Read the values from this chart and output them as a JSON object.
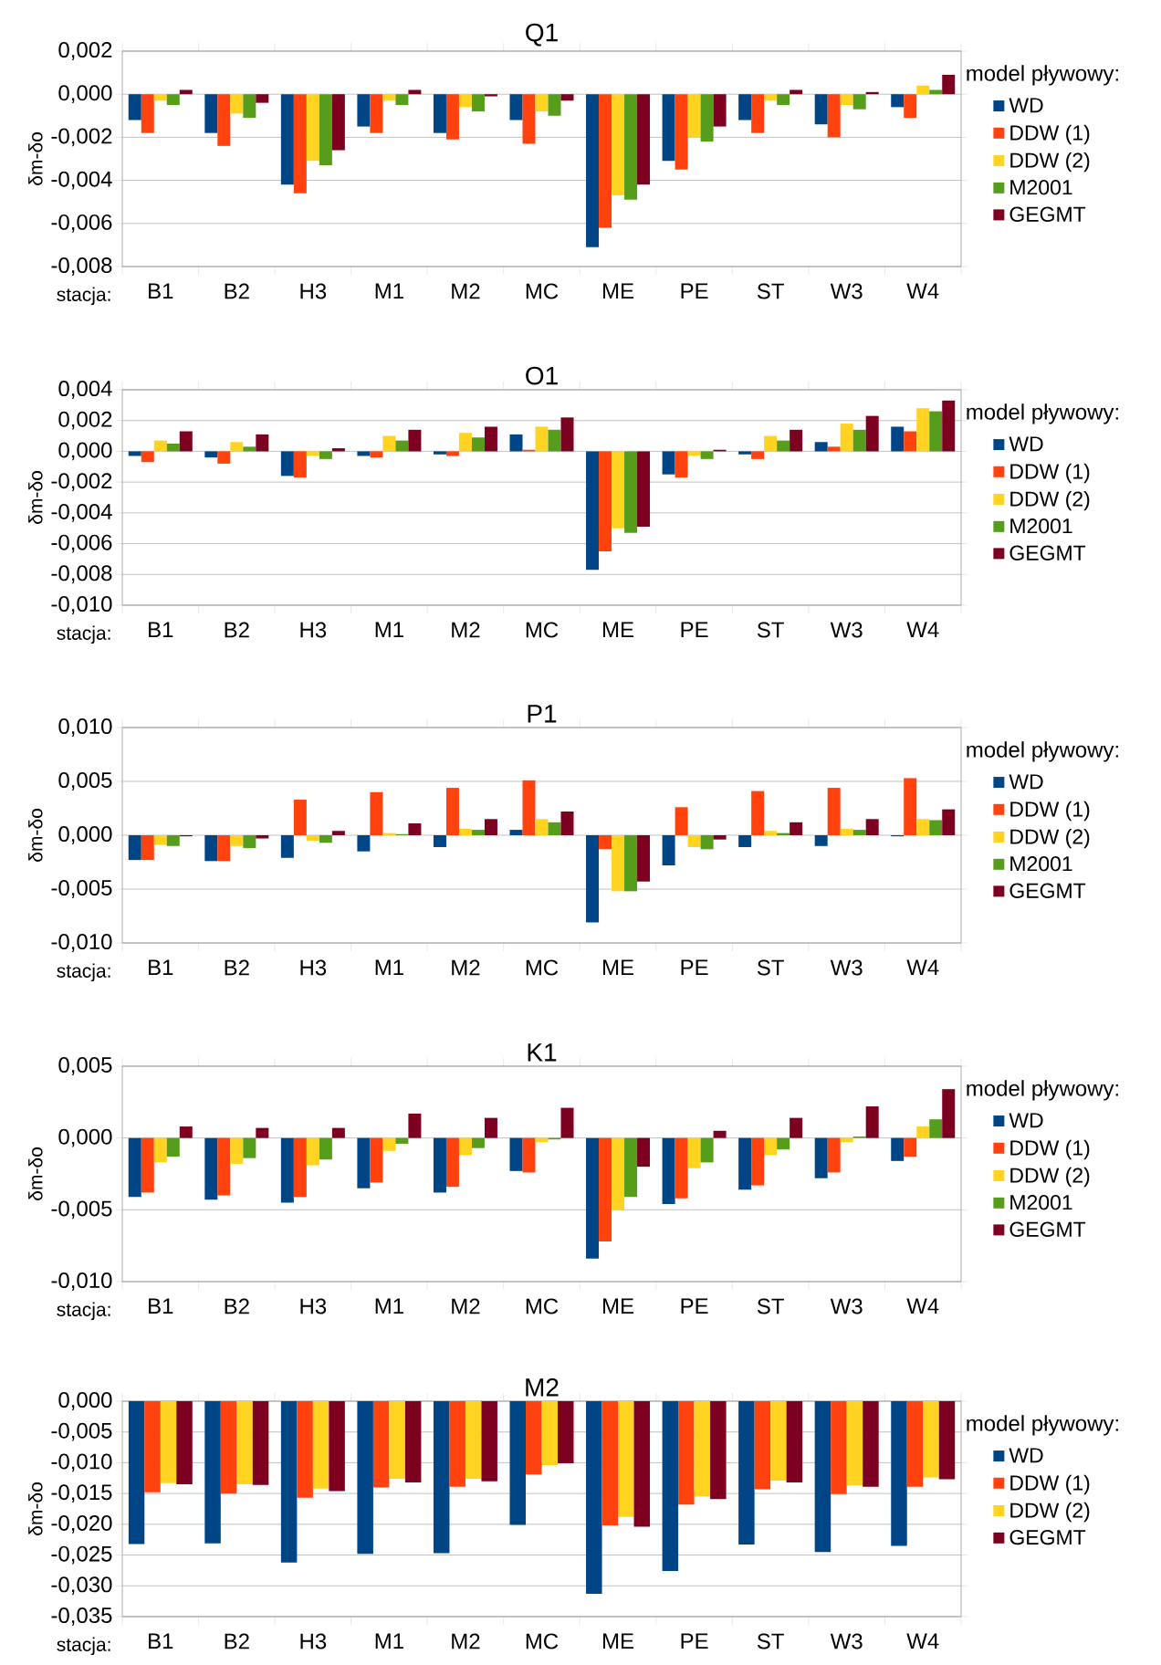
{
  "chart_data": [
    {
      "type": "bar",
      "title": "Q1",
      "xlabel": "stacja:",
      "ylabel": "δm-δo",
      "legend_title": "model pływowy:",
      "legend": "right",
      "grid": "y",
      "categories": [
        "B1",
        "B2",
        "H3",
        "M1",
        "M2",
        "MC",
        "ME",
        "PE",
        "ST",
        "W3",
        "W4"
      ],
      "ylim": [
        -0.008,
        0.002
      ],
      "yticks": [
        {
          "value": -0.008,
          "label": "-0,008"
        },
        {
          "value": -0.006,
          "label": "-0,006"
        },
        {
          "value": -0.004,
          "label": "-0,004"
        },
        {
          "value": -0.002,
          "label": "-0,002"
        },
        {
          "value": 0,
          "label": "0,000"
        },
        {
          "value": 0.002,
          "label": "0,002"
        }
      ],
      "series": [
        {
          "name": "WD",
          "color": "#004586",
          "values": [
            -0.0012,
            -0.0018,
            -0.0042,
            -0.0015,
            -0.0018,
            -0.0012,
            -0.0071,
            -0.0031,
            -0.0012,
            -0.0014,
            -0.0006
          ]
        },
        {
          "name": "DDW (1)",
          "color": "#ff420e",
          "values": [
            -0.0018,
            -0.0024,
            -0.0046,
            -0.0018,
            -0.0021,
            -0.0023,
            -0.0062,
            -0.0035,
            -0.0018,
            -0.002,
            -0.0011
          ]
        },
        {
          "name": "DDW (2)",
          "color": "#ffd320",
          "values": [
            -0.0003,
            -0.0009,
            -0.0031,
            -0.0003,
            -0.0006,
            -0.0008,
            -0.0047,
            -0.002,
            -0.0003,
            -0.0005,
            0.0004
          ]
        },
        {
          "name": "M2001",
          "color": "#579d1c",
          "values": [
            -0.0005,
            -0.0011,
            -0.0033,
            -0.0005,
            -0.0008,
            -0.001,
            -0.0049,
            -0.0022,
            -0.0005,
            -0.0007,
            0.0002
          ]
        },
        {
          "name": "GEGMT",
          "color": "#7e0021",
          "values": [
            0.0002,
            -0.0004,
            -0.0026,
            0.0002,
            -0.0001,
            -0.0003,
            -0.0042,
            -0.0015,
            0.0002,
            0.0001,
            0.0009
          ]
        }
      ]
    },
    {
      "type": "bar",
      "title": "O1",
      "xlabel": "stacja:",
      "ylabel": "δm-δo",
      "legend_title": "model pływowy:",
      "legend": "right",
      "grid": "y",
      "categories": [
        "B1",
        "B2",
        "H3",
        "M1",
        "M2",
        "MC",
        "ME",
        "PE",
        "ST",
        "W3",
        "W4"
      ],
      "ylim": [
        -0.01,
        0.004
      ],
      "yticks": [
        {
          "value": -0.01,
          "label": "-0,010"
        },
        {
          "value": -0.008,
          "label": "-0,008"
        },
        {
          "value": -0.006,
          "label": "-0,006"
        },
        {
          "value": -0.004,
          "label": "-0,004"
        },
        {
          "value": -0.002,
          "label": "-0,002"
        },
        {
          "value": 0,
          "label": "0,000"
        },
        {
          "value": 0.002,
          "label": "0,002"
        },
        {
          "value": 0.004,
          "label": "0,004"
        }
      ],
      "series": [
        {
          "name": "WD",
          "color": "#004586",
          "values": [
            -0.0003,
            -0.0004,
            -0.0016,
            -0.0003,
            -0.0002,
            0.0011,
            -0.0077,
            -0.0015,
            -0.0002,
            0.0006,
            0.0016
          ]
        },
        {
          "name": "DDW (1)",
          "color": "#ff420e",
          "values": [
            -0.0007,
            -0.0008,
            -0.0017,
            -0.0004,
            -0.0003,
            0.0001,
            -0.0065,
            -0.0017,
            -0.0005,
            0.0003,
            0.0013
          ]
        },
        {
          "name": "DDW (2)",
          "color": "#ffd320",
          "values": [
            0.0007,
            0.0006,
            -0.0003,
            0.001,
            0.0012,
            0.0016,
            -0.005,
            -0.0003,
            0.001,
            0.0018,
            0.0028
          ]
        },
        {
          "name": "M2001",
          "color": "#579d1c",
          "values": [
            0.0005,
            0.0003,
            -0.0005,
            0.0007,
            0.0009,
            0.0014,
            -0.0053,
            -0.0005,
            0.0007,
            0.0014,
            0.0026
          ]
        },
        {
          "name": "GEGMT",
          "color": "#7e0021",
          "values": [
            0.0013,
            0.0011,
            0.0002,
            0.0014,
            0.0016,
            0.0022,
            -0.0049,
            0.0001,
            0.0014,
            0.0023,
            0.0033
          ]
        }
      ]
    },
    {
      "type": "bar",
      "title": "P1",
      "xlabel": "stacja:",
      "ylabel": "δm-δo",
      "legend_title": "model pływowy:",
      "legend": "right",
      "grid": "y",
      "categories": [
        "B1",
        "B2",
        "H3",
        "M1",
        "M2",
        "MC",
        "ME",
        "PE",
        "ST",
        "W3",
        "W4"
      ],
      "ylim": [
        -0.01,
        0.01
      ],
      "yticks": [
        {
          "value": -0.01,
          "label": "-0,010"
        },
        {
          "value": -0.005,
          "label": "-0,005"
        },
        {
          "value": 0,
          "label": "0,000"
        },
        {
          "value": 0.005,
          "label": "0,005"
        },
        {
          "value": 0.01,
          "label": "0,010"
        }
      ],
      "series": [
        {
          "name": "WD",
          "color": "#004586",
          "values": [
            -0.0023,
            -0.0024,
            -0.0021,
            -0.0015,
            -0.0011,
            0.0005,
            -0.0081,
            -0.0028,
            -0.0011,
            -0.001,
            -0.0001
          ]
        },
        {
          "name": "DDW (1)",
          "color": "#ff420e",
          "values": [
            -0.0023,
            -0.0024,
            0.0033,
            0.004,
            0.0044,
            0.0051,
            -0.0013,
            0.0026,
            0.0041,
            0.0044,
            0.0053
          ]
        },
        {
          "name": "DDW (2)",
          "color": "#ffd320",
          "values": [
            -0.0009,
            -0.001,
            -0.0005,
            0.0002,
            0.0006,
            0.0015,
            -0.0052,
            -0.0011,
            0.0004,
            0.0006,
            0.0015
          ]
        },
        {
          "name": "M2001",
          "color": "#579d1c",
          "values": [
            -0.001,
            -0.0012,
            -0.0007,
            0.0001,
            0.0005,
            0.0012,
            -0.0052,
            -0.0013,
            0.0002,
            0.0005,
            0.0014
          ]
        },
        {
          "name": "GEGMT",
          "color": "#7e0021",
          "values": [
            -0.0001,
            -0.0003,
            0.0004,
            0.0011,
            0.0015,
            0.0022,
            -0.0043,
            -0.0004,
            0.0012,
            0.0015,
            0.0024
          ]
        }
      ]
    },
    {
      "type": "bar",
      "title": "K1",
      "xlabel": "stacja:",
      "ylabel": "δm-δo",
      "legend_title": "model pływowy:",
      "legend": "right",
      "grid": "y",
      "categories": [
        "B1",
        "B2",
        "H3",
        "M1",
        "M2",
        "MC",
        "ME",
        "PE",
        "ST",
        "W3",
        "W4"
      ],
      "ylim": [
        -0.01,
        0.005
      ],
      "yticks": [
        {
          "value": -0.01,
          "label": "-0,010"
        },
        {
          "value": -0.005,
          "label": "-0,005"
        },
        {
          "value": 0,
          "label": "0,000"
        },
        {
          "value": 0.005,
          "label": "0,005"
        }
      ],
      "series": [
        {
          "name": "WD",
          "color": "#004586",
          "values": [
            -0.0041,
            -0.0043,
            -0.0045,
            -0.0035,
            -0.0038,
            -0.0023,
            -0.0084,
            -0.0046,
            -0.0036,
            -0.0028,
            -0.0016
          ]
        },
        {
          "name": "DDW (1)",
          "color": "#ff420e",
          "values": [
            -0.0038,
            -0.004,
            -0.0041,
            -0.0031,
            -0.0034,
            -0.0024,
            -0.0072,
            -0.0042,
            -0.0033,
            -0.0024,
            -0.0013
          ]
        },
        {
          "name": "DDW (2)",
          "color": "#ffd320",
          "values": [
            -0.0017,
            -0.0018,
            -0.0019,
            -0.0009,
            -0.0012,
            -0.0003,
            -0.005,
            -0.0021,
            -0.0012,
            -0.0003,
            0.0008
          ]
        },
        {
          "name": "M2001",
          "color": "#579d1c",
          "values": [
            -0.0013,
            -0.0014,
            -0.0015,
            -0.0004,
            -0.0007,
            -0.0001,
            -0.0041,
            -0.0017,
            -0.0008,
            0.0001,
            0.0013
          ]
        },
        {
          "name": "GEGMT",
          "color": "#7e0021",
          "values": [
            0.0008,
            0.0007,
            0.0007,
            0.0017,
            0.0014,
            0.0021,
            -0.002,
            0.0005,
            0.0014,
            0.0022,
            0.0034
          ]
        }
      ]
    },
    {
      "type": "bar",
      "title": "M2",
      "xlabel": "stacja:",
      "ylabel": "δm-δo",
      "legend_title": "model pływowy:",
      "legend": "right",
      "grid": "y",
      "categories": [
        "B1",
        "B2",
        "H3",
        "M1",
        "M2",
        "MC",
        "ME",
        "PE",
        "ST",
        "W3",
        "W4"
      ],
      "ylim": [
        -0.035,
        0.0
      ],
      "yticks": [
        {
          "value": -0.035,
          "label": "-0,035"
        },
        {
          "value": -0.03,
          "label": "-0,030"
        },
        {
          "value": -0.025,
          "label": "-0,025"
        },
        {
          "value": -0.02,
          "label": "-0,020"
        },
        {
          "value": -0.015,
          "label": "-0,015"
        },
        {
          "value": -0.01,
          "label": "-0,010"
        },
        {
          "value": -0.005,
          "label": "-0,005"
        },
        {
          "value": 0,
          "label": "0,000"
        }
      ],
      "series": [
        {
          "name": "WD",
          "color": "#004586",
          "values": [
            -0.0232,
            -0.0231,
            -0.0262,
            -0.0248,
            -0.0247,
            -0.0201,
            -0.0313,
            -0.0276,
            -0.0233,
            -0.0245,
            -0.0235
          ]
        },
        {
          "name": "DDW (1)",
          "color": "#ff420e",
          "values": [
            -0.0148,
            -0.015,
            -0.0157,
            -0.014,
            -0.0139,
            -0.0119,
            -0.0202,
            -0.0168,
            -0.0143,
            -0.0151,
            -0.0139
          ]
        },
        {
          "name": "DDW (2)",
          "color": "#ffd320",
          "values": [
            -0.0133,
            -0.0135,
            -0.0142,
            -0.0126,
            -0.0126,
            -0.0104,
            -0.0188,
            -0.0155,
            -0.0129,
            -0.0137,
            -0.0124
          ]
        },
        {
          "name": "GEGMT",
          "color": "#7e0021",
          "values": [
            -0.0135,
            -0.0136,
            -0.0146,
            -0.0132,
            -0.013,
            -0.0101,
            -0.0204,
            -0.0159,
            -0.0132,
            -0.0139,
            -0.0127
          ]
        }
      ]
    }
  ]
}
